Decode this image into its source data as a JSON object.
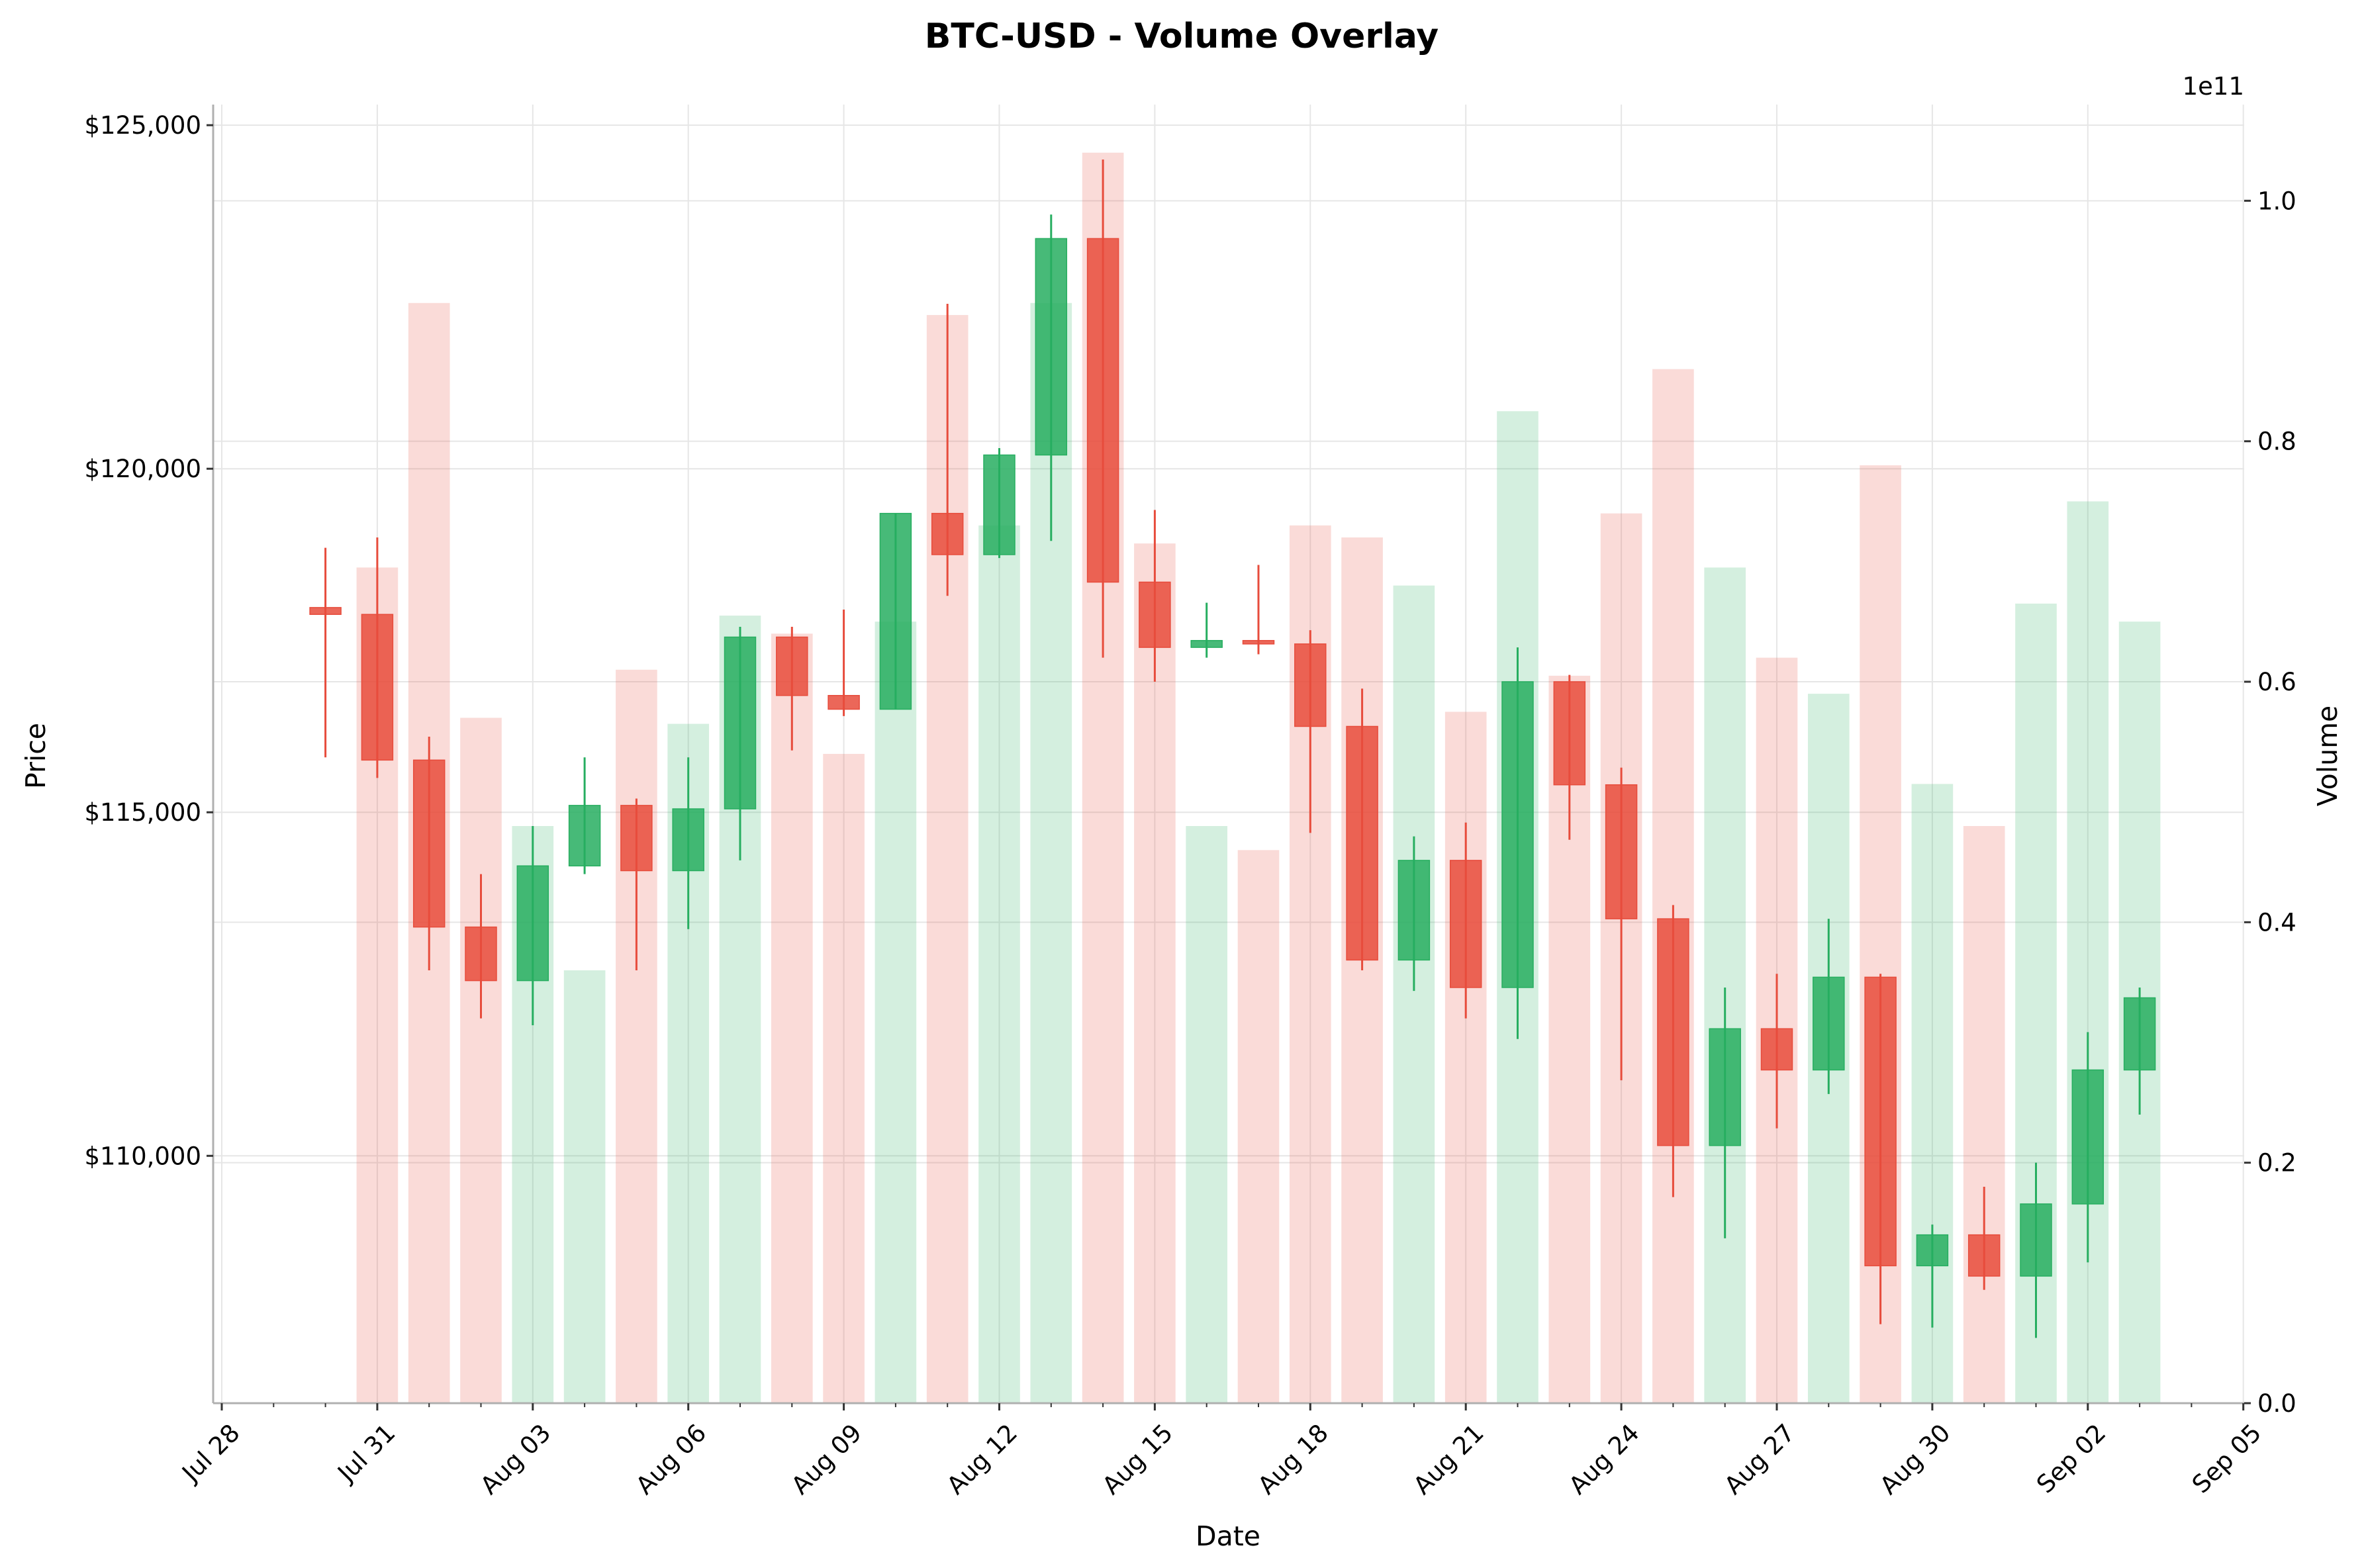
{
  "chart_data": {
    "type": "candlestick",
    "title": "BTC-USD - Volume Overlay",
    "xlabel": "Date",
    "ylabel": "Price",
    "y2label": "Volume",
    "y2_offset_label": "1e11",
    "ylim": [
      106400,
      125300
    ],
    "y2lim": [
      0,
      1.08
    ],
    "y_ticks": [
      {
        "value": 110000,
        "label": "$110,000"
      },
      {
        "value": 115000,
        "label": "$115,000"
      },
      {
        "value": 120000,
        "label": "$120,000"
      },
      {
        "value": 125000,
        "label": "$125,000"
      }
    ],
    "y2_ticks": [
      {
        "value": 0.0,
        "label": "0.0"
      },
      {
        "value": 0.2,
        "label": "0.2"
      },
      {
        "value": 0.4,
        "label": "0.4"
      },
      {
        "value": 0.6,
        "label": "0.6"
      },
      {
        "value": 0.8,
        "label": "0.8"
      },
      {
        "value": 1.0,
        "label": "1.0"
      }
    ],
    "x_ticks": [
      "Jul 28",
      "Jul 31",
      "Aug 03",
      "Aug 06",
      "Aug 09",
      "Aug 12",
      "Aug 15",
      "Aug 18",
      "Aug 21",
      "Aug 24",
      "Aug 27",
      "Aug 30",
      "Sep 02",
      "Sep 05"
    ],
    "grid": true,
    "up_color": "#27ae60",
    "down_color": "#e74c3c",
    "candles": [
      {
        "date": "2025-07-30",
        "open": 117980,
        "high": 118850,
        "low": 115800,
        "close": 117880,
        "volume": 0.0
      },
      {
        "date": "2025-07-31",
        "open": 117880,
        "high": 119000,
        "low": 115500,
        "close": 115760,
        "volume": 0.695
      },
      {
        "date": "2025-08-01",
        "open": 115760,
        "high": 116100,
        "low": 112700,
        "close": 113330,
        "volume": 0.915
      },
      {
        "date": "2025-08-02",
        "open": 113330,
        "high": 114100,
        "low": 112000,
        "close": 112550,
        "volume": 0.57
      },
      {
        "date": "2025-08-03",
        "open": 112550,
        "high": 114800,
        "low": 111900,
        "close": 114220,
        "volume": 0.48
      },
      {
        "date": "2025-08-04",
        "open": 114220,
        "high": 115800,
        "low": 114100,
        "close": 115100,
        "volume": 0.36
      },
      {
        "date": "2025-08-05",
        "open": 115100,
        "high": 115200,
        "low": 112700,
        "close": 114150,
        "volume": 0.61
      },
      {
        "date": "2025-08-06",
        "open": 114150,
        "high": 115800,
        "low": 113300,
        "close": 115050,
        "volume": 0.565
      },
      {
        "date": "2025-08-07",
        "open": 115050,
        "high": 117700,
        "low": 114300,
        "close": 117550,
        "volume": 0.655
      },
      {
        "date": "2025-08-08",
        "open": 117550,
        "high": 117700,
        "low": 115900,
        "close": 116700,
        "volume": 0.64
      },
      {
        "date": "2025-08-09",
        "open": 116700,
        "high": 117950,
        "low": 116400,
        "close": 116500,
        "volume": 0.54
      },
      {
        "date": "2025-08-10",
        "open": 116500,
        "high": 119350,
        "low": 116500,
        "close": 119350,
        "volume": 0.65
      },
      {
        "date": "2025-08-11",
        "open": 119350,
        "high": 122400,
        "low": 118150,
        "close": 118750,
        "volume": 0.905
      },
      {
        "date": "2025-08-12",
        "open": 118750,
        "high": 120300,
        "low": 118700,
        "close": 120200,
        "volume": 0.73
      },
      {
        "date": "2025-08-13",
        "open": 120200,
        "high": 123700,
        "low": 118950,
        "close": 123350,
        "volume": 0.915
      },
      {
        "date": "2025-08-14",
        "open": 123350,
        "high": 124500,
        "low": 117250,
        "close": 118350,
        "volume": 1.04
      },
      {
        "date": "2025-08-15",
        "open": 118350,
        "high": 119400,
        "low": 116900,
        "close": 117400,
        "volume": 0.715
      },
      {
        "date": "2025-08-16",
        "open": 117400,
        "high": 118050,
        "low": 117250,
        "close": 117500,
        "volume": 0.48
      },
      {
        "date": "2025-08-17",
        "open": 117500,
        "high": 118600,
        "low": 117300,
        "close": 117450,
        "volume": 0.46
      },
      {
        "date": "2025-08-18",
        "open": 117450,
        "high": 117650,
        "low": 114700,
        "close": 116250,
        "volume": 0.73
      },
      {
        "date": "2025-08-19",
        "open": 116250,
        "high": 116800,
        "low": 112700,
        "close": 112850,
        "volume": 0.72
      },
      {
        "date": "2025-08-20",
        "open": 112850,
        "high": 114650,
        "low": 112400,
        "close": 114300,
        "volume": 0.68
      },
      {
        "date": "2025-08-21",
        "open": 114300,
        "high": 114850,
        "low": 112000,
        "close": 112450,
        "volume": 0.575
      },
      {
        "date": "2025-08-22",
        "open": 112450,
        "high": 117400,
        "low": 111700,
        "close": 116900,
        "volume": 0.825
      },
      {
        "date": "2025-08-23",
        "open": 116900,
        "high": 117000,
        "low": 114600,
        "close": 115400,
        "volume": 0.605
      },
      {
        "date": "2025-08-24",
        "open": 115400,
        "high": 115650,
        "low": 111100,
        "close": 113450,
        "volume": 0.74
      },
      {
        "date": "2025-08-25",
        "open": 113450,
        "high": 113650,
        "low": 109400,
        "close": 110150,
        "volume": 0.86
      },
      {
        "date": "2025-08-26",
        "open": 110150,
        "high": 112450,
        "low": 108800,
        "close": 111850,
        "volume": 0.695
      },
      {
        "date": "2025-08-27",
        "open": 111850,
        "high": 112650,
        "low": 110400,
        "close": 111250,
        "volume": 0.62
      },
      {
        "date": "2025-08-28",
        "open": 111250,
        "high": 113450,
        "low": 110900,
        "close": 112600,
        "volume": 0.59
      },
      {
        "date": "2025-08-29",
        "open": 112600,
        "high": 112650,
        "low": 107550,
        "close": 108400,
        "volume": 0.78
      },
      {
        "date": "2025-08-30",
        "open": 108400,
        "high": 109000,
        "low": 107500,
        "close": 108850,
        "volume": 0.515
      },
      {
        "date": "2025-08-31",
        "open": 108850,
        "high": 109550,
        "low": 108050,
        "close": 108250,
        "volume": 0.48
      },
      {
        "date": "2025-09-01",
        "open": 108250,
        "high": 109900,
        "low": 107350,
        "close": 109300,
        "volume": 0.665
      },
      {
        "date": "2025-09-02",
        "open": 109300,
        "high": 111800,
        "low": 108450,
        "close": 111250,
        "volume": 0.75
      },
      {
        "date": "2025-09-03",
        "open": 111250,
        "high": 112450,
        "low": 110600,
        "close": 112300,
        "volume": 0.65
      }
    ]
  }
}
